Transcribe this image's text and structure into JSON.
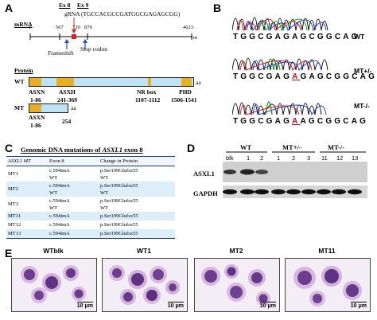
{
  "panels": {
    "a": "A",
    "b": "B",
    "c": "C",
    "d": "D",
    "e": "E"
  },
  "panel_a": {
    "ex8": "Ex 8",
    "ex9": "Ex 9",
    "grna": "gRNA (TGCCACGCCGATGGCGAGAGCGG)",
    "mrna_label": "mRNA",
    "pos_1": "1",
    "pos_567": "567",
    "pos_720": "720",
    "pos_879": "879",
    "pos_4623": "4623",
    "nt": "nt",
    "frameshift": "Frameshift",
    "stop_codon": "Stop codon",
    "protein_label": "Protein",
    "wt_label": "WT",
    "mt_label": "MT",
    "aa": "aa",
    "asxn": "ASXN",
    "asxn_range": "1-86",
    "asxh": "ASXH",
    "asxh_range": "241-369",
    "nr_box": "NR box",
    "nr_range": "1107-1112",
    "phd": "PHD",
    "phd_range": "1506-1541",
    "mt_asxn": "ASXN",
    "mt_asxn_range": "1-86",
    "mt_end": "254",
    "colors": {
      "domain": "#e8b020",
      "protein": "#bde3f5",
      "mark_red": "#e02020",
      "arrow_blue": "#1f4fd0"
    }
  },
  "panel_b": {
    "rows": [
      {
        "label": "WT",
        "pre": "TGGCGAGAGCGGCAG",
        "hl": "",
        "post": ""
      },
      {
        "label": "MT+/-",
        "pre": "TGGCGAG",
        "hl": "A",
        "post": "GAGCGGCAG"
      },
      {
        "label": "MT-/-",
        "pre": "TGGCGAG",
        "hl": "A",
        "post": "AGCGGCAG"
      }
    ],
    "colors": {
      "A": "#1aa01a",
      "C": "#1e3fd8",
      "G": "#111111",
      "T": "#d81e1e"
    }
  },
  "panel_c": {
    "title_prefix": "Genomic DNA mutations of ",
    "title_gene": "ASXL1",
    "title_suffix": " exon 8",
    "headers": [
      "ASXL1 MT",
      "Exon 8",
      "Change in Protein"
    ],
    "rows": [
      {
        "id": "MT1",
        "exon": [
          "c.594imA",
          "WT"
        ],
        "protein": [
          "p.Ser199Glufsx55",
          "WT"
        ]
      },
      {
        "id": "MT2",
        "exon": [
          "c.594imA",
          "WT"
        ],
        "protein": [
          "p.Ser199Glufsx55",
          "WT"
        ]
      },
      {
        "id": "MT3",
        "exon": [
          "c.594imA",
          "WT"
        ],
        "protein": [
          "p.Ser199Glufsx55",
          "WT"
        ]
      },
      {
        "id": "MT11",
        "exon": [
          "c.594imA"
        ],
        "protein": [
          "p.Ser199Glufsx55"
        ]
      },
      {
        "id": "MT12",
        "exon": [
          "c.594imA"
        ],
        "protein": [
          "p.Ser199Glufsx55"
        ]
      },
      {
        "id": "MT13",
        "exon": [
          "c.594imA"
        ],
        "protein": [
          "p.Ser199Glufsx55"
        ]
      }
    ]
  },
  "panel_d": {
    "group_wt": "WT",
    "group_het": "MT+/-",
    "group_hom": "MT-/-",
    "lanes": [
      "blk",
      "1",
      "2",
      "1",
      "2",
      "3",
      "11",
      "12",
      "13"
    ],
    "band_asxl1": "ASXL1",
    "band_gapdh": "GAPDH"
  },
  "panel_e": {
    "images": [
      {
        "title": "WTblk",
        "scale": "10 μm"
      },
      {
        "title": "WT1",
        "scale": "10 μm"
      },
      {
        "title": "MT2",
        "scale": "10 μm"
      },
      {
        "title": "MT11",
        "scale": "10 μm"
      }
    ]
  }
}
